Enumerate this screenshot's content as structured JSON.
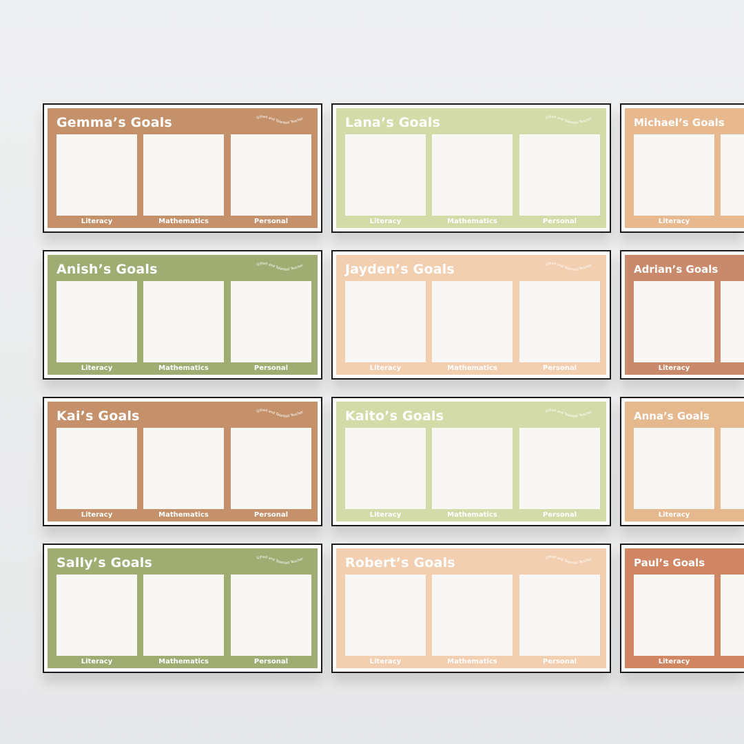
{
  "logo_text": "Gifted and Talented Teacher",
  "categories": [
    "Literacy",
    "Mathematics",
    "Personal"
  ],
  "cards": [
    {
      "title": "Gemma’s Goals",
      "color": "#c4916a",
      "logo": true
    },
    {
      "title": "Lana’s Goals",
      "color": "#d3dca8",
      "logo": true
    },
    {
      "title": "Michael’s Goals",
      "color": "#e8b98e",
      "logo": false
    },
    {
      "title": "Anish’s Goals",
      "color": "#9fac72",
      "logo": true
    },
    {
      "title": "Jayden’s Goals",
      "color": "#f2cfb0",
      "logo": true
    },
    {
      "title": "Adrian’s Goals",
      "color": "#c98a6c",
      "logo": false
    },
    {
      "title": "Kai’s Goals",
      "color": "#c4916a",
      "logo": true
    },
    {
      "title": "Kaito’s Goals",
      "color": "#d3dca8",
      "logo": true
    },
    {
      "title": "Anna’s Goals",
      "color": "#e6b88e",
      "logo": false
    },
    {
      "title": "Sally’s Goals",
      "color": "#9fac72",
      "logo": true
    },
    {
      "title": "Robert’s Goals",
      "color": "#f2cfb0",
      "logo": true
    },
    {
      "title": "Paul’s Goals",
      "color": "#d08662",
      "logo": false
    }
  ]
}
